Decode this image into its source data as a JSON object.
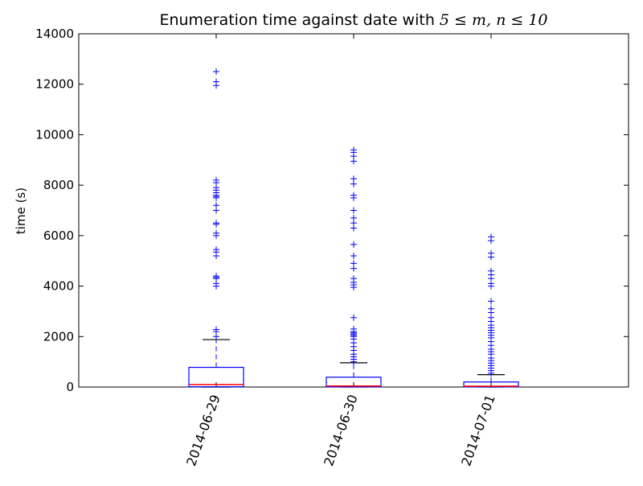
{
  "chart_data": {
    "type": "box",
    "title_prefix": "Enumeration time against date with ",
    "title_math": "5 ≤ m, n ≤ 10",
    "xlabel": "",
    "ylabel": "time (s)",
    "ylim": [
      0,
      14000
    ],
    "yticks": [
      "0",
      "2000",
      "4000",
      "6000",
      "8000",
      "10000",
      "12000",
      "14000"
    ],
    "grid": false,
    "colors": {
      "box": "#0000ff",
      "median": "#ff0000",
      "whisker_cap": "#000000",
      "flier": "#0000ff"
    },
    "categories": [
      "2014-06-29",
      "2014-06-30",
      "2014-07-01"
    ],
    "boxes": [
      {
        "label": "2014-06-29",
        "whislo": 0,
        "q1": 10,
        "median": 100,
        "q3": 780,
        "whishi": 1880,
        "fliers": [
          2000,
          2200,
          2280,
          4000,
          4100,
          4300,
          4350,
          4400,
          5200,
          5350,
          5450,
          6000,
          6100,
          6450,
          6500,
          7000,
          7200,
          7500,
          7550,
          7600,
          7700,
          7800,
          7900,
          8100,
          8200,
          11950,
          12100,
          12500
        ]
      },
      {
        "label": "2014-06-30",
        "whislo": 0,
        "q1": 5,
        "median": 40,
        "q3": 390,
        "whishi": 960,
        "fliers": [
          1000,
          1100,
          1200,
          1300,
          1450,
          1600,
          1750,
          1900,
          2000,
          2050,
          2100,
          2150,
          2200,
          2300,
          2750,
          3950,
          4050,
          4150,
          4300,
          4700,
          4900,
          5200,
          5650,
          6300,
          6500,
          6700,
          7000,
          7500,
          7600,
          8050,
          8250,
          8950,
          9150,
          9300,
          9400
        ]
      },
      {
        "label": "2014-07-01",
        "whislo": 0,
        "q1": 5,
        "median": 30,
        "q3": 200,
        "whishi": 490,
        "fliers": [
          550,
          650,
          750,
          850,
          950,
          1050,
          1150,
          1300,
          1400,
          1500,
          1650,
          1800,
          1950,
          2050,
          2150,
          2250,
          2350,
          2450,
          2600,
          2750,
          2950,
          3100,
          3400,
          4000,
          4100,
          4300,
          4450,
          4600,
          5150,
          5300,
          5800,
          5950
        ]
      }
    ]
  }
}
